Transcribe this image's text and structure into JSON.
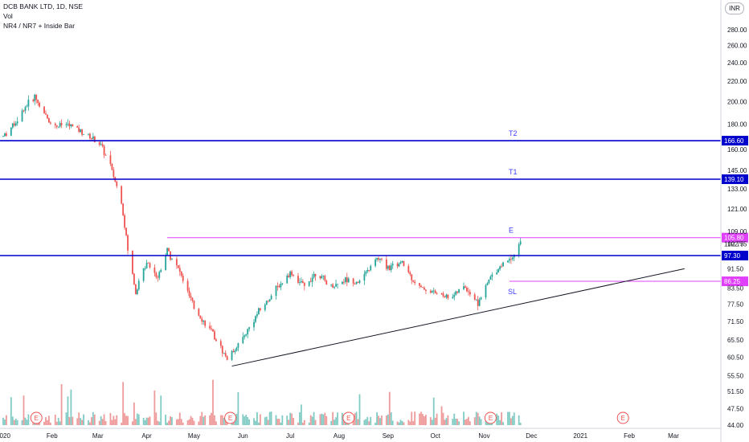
{
  "header": {
    "symbol_line": "DCB BANK LTD, 1D, NSE",
    "vol_label": "Vol",
    "indicator_label": "NR4 / NR7 + Inside Bar",
    "currency": "INR"
  },
  "chart_data": {
    "type": "candlestick",
    "x_axis_labels": [
      "2020",
      "Feb",
      "Mar",
      "Apr",
      "May",
      "Jun",
      "Jul",
      "Aug",
      "Sep",
      "Oct",
      "Nov",
      "Dec",
      "2021",
      "Feb",
      "Mar"
    ],
    "y_axis": {
      "scale": "log",
      "ticks": [
        "280.00",
        "260.00",
        "240.00",
        "220.00",
        "200.00",
        "180.00",
        "160.00",
        "145.00",
        "133.00",
        "121.00",
        "109.00",
        "102.75",
        "91.50",
        "83.50",
        "77.50",
        "71.50",
        "65.50",
        "60.50",
        "55.50",
        "51.50",
        "47.50",
        "44.00"
      ]
    },
    "price_path": [
      {
        "date": "2020-01-01",
        "close": 170
      },
      {
        "date": "2020-01-08",
        "close": 180
      },
      {
        "date": "2020-01-15",
        "close": 195
      },
      {
        "date": "2020-01-21",
        "close": 205
      },
      {
        "date": "2020-01-27",
        "close": 188
      },
      {
        "date": "2020-02-03",
        "close": 178
      },
      {
        "date": "2020-02-10",
        "close": 180
      },
      {
        "date": "2020-02-17",
        "close": 176
      },
      {
        "date": "2020-02-24",
        "close": 170
      },
      {
        "date": "2020-03-02",
        "close": 165
      },
      {
        "date": "2020-03-09",
        "close": 148
      },
      {
        "date": "2020-03-16",
        "close": 125
      },
      {
        "date": "2020-03-20",
        "close": 100
      },
      {
        "date": "2020-03-25",
        "close": 82
      },
      {
        "date": "2020-04-01",
        "close": 95
      },
      {
        "date": "2020-04-08",
        "close": 88
      },
      {
        "date": "2020-04-14",
        "close": 100
      },
      {
        "date": "2020-04-22",
        "close": 90
      },
      {
        "date": "2020-05-01",
        "close": 76
      },
      {
        "date": "2020-05-12",
        "close": 68
      },
      {
        "date": "2020-05-22",
        "close": 60
      },
      {
        "date": "2020-06-01",
        "close": 66
      },
      {
        "date": "2020-06-10",
        "close": 74
      },
      {
        "date": "2020-06-22",
        "close": 83
      },
      {
        "date": "2020-07-01",
        "close": 90
      },
      {
        "date": "2020-07-10",
        "close": 84
      },
      {
        "date": "2020-07-17",
        "close": 90
      },
      {
        "date": "2020-07-27",
        "close": 84
      },
      {
        "date": "2020-08-05",
        "close": 87
      },
      {
        "date": "2020-08-14",
        "close": 86
      },
      {
        "date": "2020-08-25",
        "close": 96
      },
      {
        "date": "2020-09-02",
        "close": 92
      },
      {
        "date": "2020-09-10",
        "close": 94
      },
      {
        "date": "2020-09-20",
        "close": 84
      },
      {
        "date": "2020-09-30",
        "close": 82
      },
      {
        "date": "2020-10-10",
        "close": 80
      },
      {
        "date": "2020-10-20",
        "close": 84
      },
      {
        "date": "2020-10-28",
        "close": 78
      },
      {
        "date": "2020-11-05",
        "close": 88
      },
      {
        "date": "2020-11-13",
        "close": 94
      },
      {
        "date": "2020-11-20",
        "close": 98
      },
      {
        "date": "2020-11-24",
        "close": 104
      }
    ],
    "horizontal_lines": [
      {
        "name": "T2",
        "value": 166.6,
        "label": "166.60",
        "color": "#0000cc"
      },
      {
        "name": "T1",
        "value": 139.1,
        "label": "139.10",
        "color": "#0000cc"
      },
      {
        "name": "E",
        "value": 105.8,
        "label": "105.80",
        "color": "#e040fb"
      },
      {
        "name": "",
        "value": 97.3,
        "label": "97.30",
        "color": "#0000cc"
      },
      {
        "name": "SL",
        "value": 86.25,
        "label": "86.25",
        "color": "#e040fb"
      }
    ],
    "trendline": {
      "start": {
        "date": "2020-05-25",
        "value": 58
      },
      "end": {
        "date": "2021-03-08",
        "value": 91.5
      },
      "color": "#131722"
    },
    "last_price": {
      "value": 102.75,
      "label": "102.75"
    },
    "earnings_markers": [
      {
        "date": "2020-01-22",
        "label": "E"
      },
      {
        "date": "2020-05-24",
        "label": "E"
      },
      {
        "date": "2020-08-07",
        "label": "E"
      },
      {
        "date": "2020-11-05",
        "label": "E"
      },
      {
        "date": "2021-01-28",
        "label": "E"
      }
    ],
    "volume": {
      "style": "bars",
      "colors": {
        "up": "#80cbc4",
        "down": "#ef9a9a"
      }
    },
    "colors": {
      "up": "#26a69a",
      "down": "#ef5350"
    }
  }
}
